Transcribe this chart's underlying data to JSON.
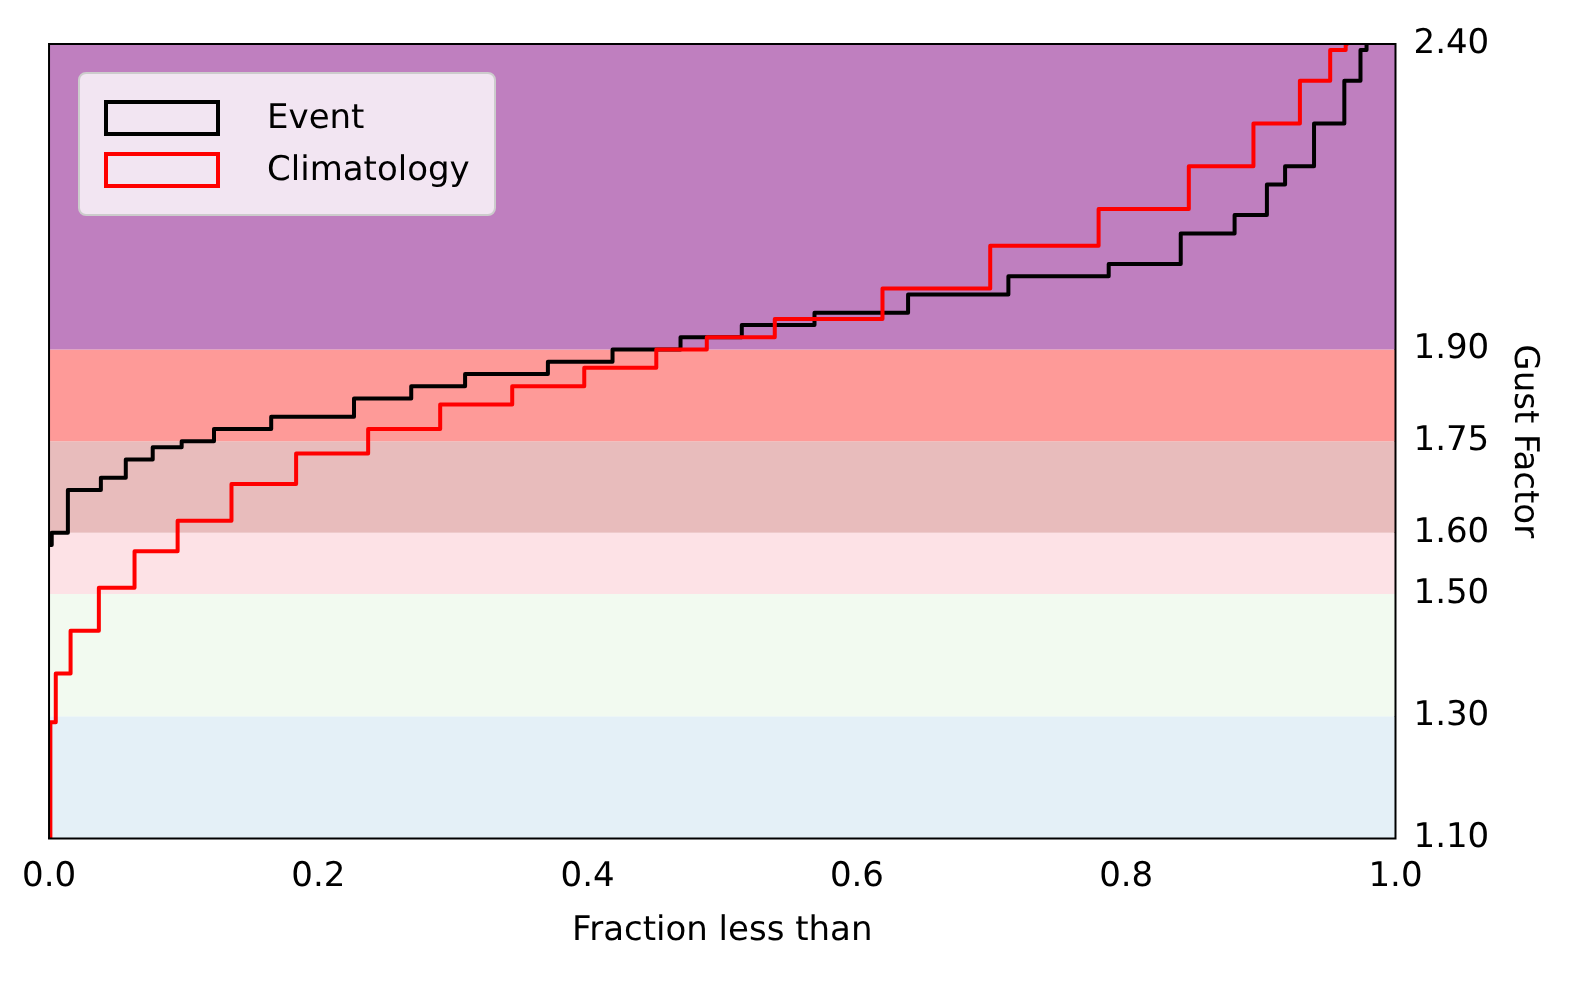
{
  "chart_data": {
    "type": "step",
    "xlabel": "Fraction less than",
    "ylabel": "Gust Factor",
    "xlim": [
      0,
      1
    ],
    "xticks": [
      {
        "value": 0,
        "label": "0.0"
      },
      {
        "value": 0.2,
        "label": "0.2"
      },
      {
        "value": 0.4,
        "label": "0.4"
      },
      {
        "value": 0.6,
        "label": "0.6"
      },
      {
        "value": 0.8,
        "label": "0.8"
      },
      {
        "value": 1,
        "label": "1.0"
      }
    ],
    "ylim": [
      1.1,
      2.4
    ],
    "yticks": [
      {
        "value": 1.1,
        "label": "1.10"
      },
      {
        "value": 1.3,
        "label": "1.30"
      },
      {
        "value": 1.5,
        "label": "1.50"
      },
      {
        "value": 1.6,
        "label": "1.60"
      },
      {
        "value": 1.75,
        "label": "1.75"
      },
      {
        "value": 1.9,
        "label": "1.90"
      },
      {
        "value": 2.4,
        "label": "2.40"
      }
    ],
    "grid": false,
    "legend": "top left",
    "bands": [
      {
        "axis": "y",
        "from": 1.1,
        "to": 1.3,
        "color": "#e4f0f7"
      },
      {
        "axis": "y",
        "from": 1.3,
        "to": 1.5,
        "color": "#f2faf0"
      },
      {
        "axis": "y",
        "from": 1.5,
        "to": 1.6,
        "color": "#fde2e6"
      },
      {
        "axis": "y",
        "from": 1.6,
        "to": 1.75,
        "color": "#e8bcbc"
      },
      {
        "axis": "y",
        "from": 1.75,
        "to": 1.9,
        "color": "#fe9a98"
      },
      {
        "axis": "y",
        "from": 1.9,
        "to": 2.4,
        "color": "#bf7fbf"
      }
    ],
    "series": [
      {
        "name": "Event",
        "color": "#000000",
        "x": [
          0,
          0.004,
          0.024,
          0.053,
          0.061,
          0.093,
          0.104,
          0.141,
          0.189,
          0.264,
          0.274,
          0.344,
          0.397,
          0.44,
          0.498,
          0.531,
          0.606,
          0.67,
          0.755,
          0.819,
          0.862,
          0.899,
          0.91,
          0.926,
          0.953,
          0.971,
          0.977,
          0.98
        ],
        "values": [
          1.58,
          1.6,
          1.67,
          1.69,
          1.72,
          1.74,
          1.75,
          1.77,
          1.79,
          1.82,
          1.84,
          1.86,
          1.88,
          1.9,
          1.92,
          1.94,
          1.96,
          1.99,
          2.02,
          2.04,
          2.09,
          2.12,
          2.17,
          2.2,
          2.27,
          2.34,
          2.39,
          2.4
        ]
      },
      {
        "name": "Climatology",
        "color": "#ff0000",
        "x": [
          0,
          0.002,
          0.008,
          0.024,
          0.05,
          0.077,
          0.114,
          0.157,
          0.21,
          0.264,
          0.317,
          0.371,
          0.424,
          0.478,
          0.499,
          0.579,
          0.659,
          0.739,
          0.82,
          0.873,
          0.916,
          0.942,
          0.961,
          0.965
        ],
        "values": [
          1.1,
          1.29,
          1.37,
          1.44,
          1.51,
          1.57,
          1.62,
          1.68,
          1.73,
          1.77,
          1.81,
          1.84,
          1.87,
          1.9,
          1.92,
          1.95,
          2,
          2.07,
          2.13,
          2.2,
          2.27,
          2.34,
          2.39,
          2.4
        ]
      }
    ]
  }
}
